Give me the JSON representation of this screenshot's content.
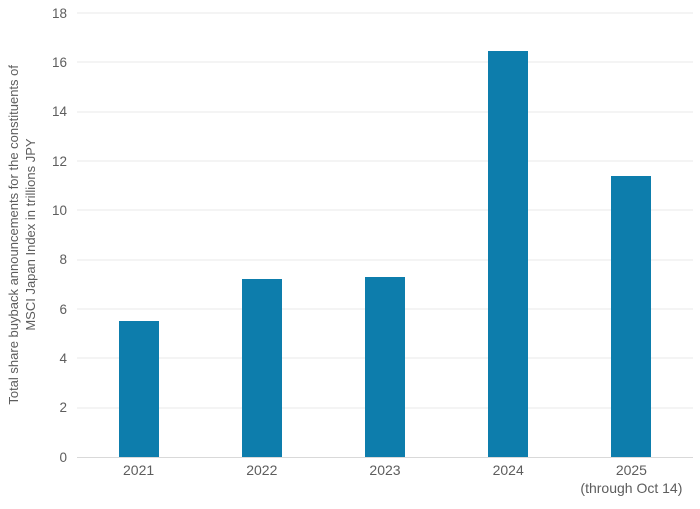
{
  "chart_data": {
    "type": "bar",
    "title": "",
    "ylabel_line1": "Total share buyback announcements for the constituents of",
    "ylabel_line2": "MSCI Japan Index in trillions JPY",
    "xlabel": "",
    "categories": [
      {
        "label": "2021",
        "note": ""
      },
      {
        "label": "2022",
        "note": ""
      },
      {
        "label": "2023",
        "note": ""
      },
      {
        "label": "2024",
        "note": ""
      },
      {
        "label": "2025",
        "note": "(through Oct 14)"
      }
    ],
    "values": [
      5.5,
      7.2,
      7.3,
      16.45,
      11.4
    ],
    "ylim": [
      0,
      18
    ],
    "yticks": [
      0,
      2,
      4,
      6,
      8,
      10,
      12,
      14,
      16,
      18
    ],
    "grid": true,
    "legend": false,
    "colors": {
      "bar": "#0d7dac",
      "gridline": "#e8e8e8",
      "axis_line": "#d9d9d9",
      "text": "#5d5d5d"
    }
  }
}
